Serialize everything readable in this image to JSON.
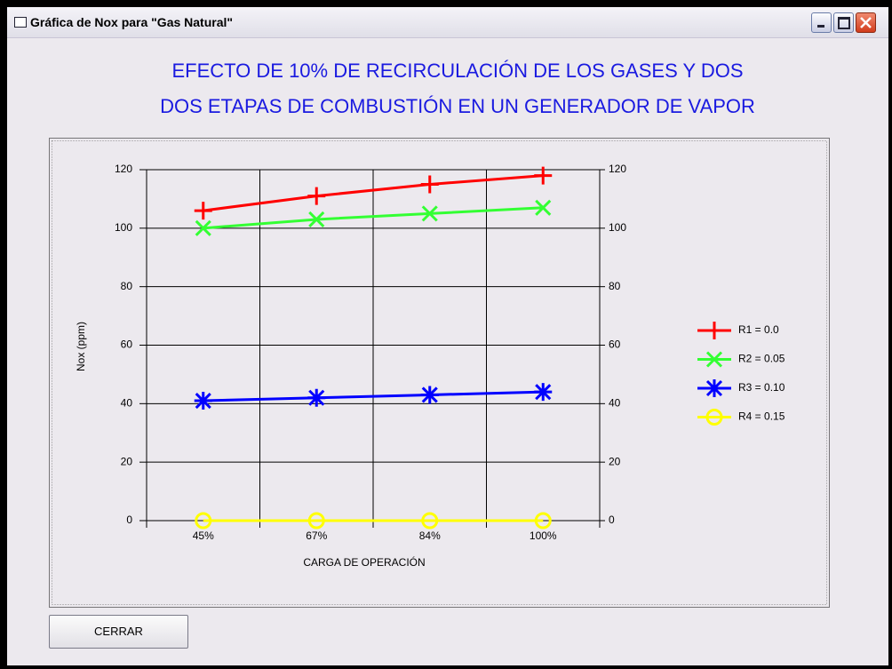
{
  "window": {
    "title": "Gráfica de Nox para \"Gas Natural\""
  },
  "chart_data": {
    "type": "line",
    "title": "EFECTO DE 10% DE RECIRCULACIÓN DE LOS GASES Y DOS",
    "subtitle": "DOS ETAPAS DE COMBUSTIÓN EN UN GENERADOR DE VAPOR",
    "x_label": "CARGA DE OPERACIÓN",
    "y_label": "Nox (ppm)",
    "categories": [
      "45%",
      "67%",
      "84%",
      "100%"
    ],
    "series": [
      {
        "name": "R1 = 0.0",
        "color": "#ff0000",
        "marker": "plus",
        "values": [
          106,
          111,
          115,
          118
        ]
      },
      {
        "name": "R2 = 0.05",
        "color": "#33ff33",
        "marker": "x",
        "values": [
          100,
          103,
          105,
          107
        ]
      },
      {
        "name": "R3 = 0.10",
        "color": "#0000ff",
        "marker": "star",
        "values": [
          41,
          42,
          43,
          44
        ]
      },
      {
        "name": "R4 = 0.15",
        "color": "#ffff00",
        "marker": "circle",
        "values": [
          0,
          0,
          0,
          0
        ]
      }
    ],
    "ylim": [
      0,
      120
    ],
    "yticks": [
      0,
      20,
      40,
      60,
      80,
      100,
      120
    ],
    "grid": true
  },
  "button": {
    "label": "CERRAR"
  }
}
